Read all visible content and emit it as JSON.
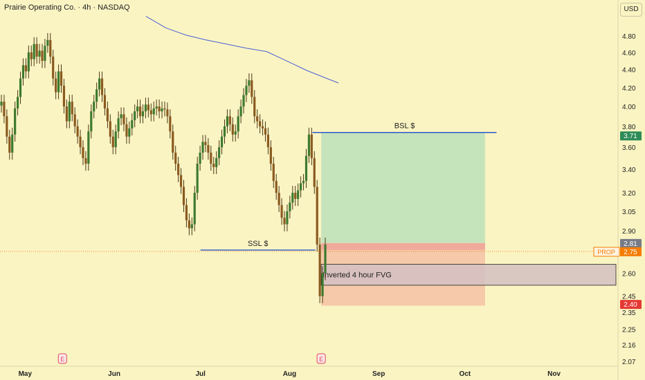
{
  "header": {
    "title": "Prairie Operating Co. · 4h · NASDAQ"
  },
  "currency_button": {
    "label": "USD"
  },
  "colors": {
    "background": "#faf4c3",
    "up_body": "#3d7a2e",
    "down_body": "#8a5a1f",
    "wick": "#4a3515",
    "ma_line": "#4a5fd6",
    "level_line": "#2b58c9",
    "profit_zone": "#c6e4bc",
    "loss_zone": "#f5c9a9",
    "entry_zone": "#f0a99b",
    "fvg_zone": "#d2bfc2",
    "badge_green": "#2e8b57",
    "badge_gray": "#787b86",
    "badge_orange": "#f57c00",
    "badge_red": "#e53935"
  },
  "chart_data": {
    "type": "candlestick",
    "title": "Prairie Operating Co. · 4h · NASDAQ",
    "currency": "USD",
    "y_scale": "log",
    "ylim": [
      2.04,
      5.0
    ],
    "y_ticks": [
      "4.80",
      "4.60",
      "4.40",
      "4.20",
      "4.00",
      "3.80",
      "3.60",
      "3.40",
      "3.20",
      "3.05",
      "2.90",
      "2.75",
      "2.60",
      "2.45",
      "2.35",
      "2.25",
      "2.16",
      "2.07"
    ],
    "x_ticks": [
      "May",
      "Jun",
      "Jul",
      "Aug",
      "Sep",
      "Oct",
      "Nov"
    ],
    "x_range": [
      "2024-04-29",
      "2024-11-30"
    ],
    "candle_closes": [
      4.05,
      3.9,
      3.7,
      3.55,
      3.72,
      3.98,
      4.1,
      4.3,
      4.45,
      4.38,
      4.6,
      4.52,
      4.7,
      4.55,
      4.62,
      4.5,
      4.68,
      4.75,
      4.55,
      4.3,
      4.15,
      4.38,
      4.22,
      4.0,
      3.85,
      4.05,
      3.92,
      3.8,
      3.7,
      3.6,
      3.5,
      3.45,
      3.75,
      3.95,
      4.05,
      4.18,
      4.3,
      4.12,
      3.98,
      3.85,
      3.7,
      3.6,
      3.75,
      3.88,
      3.92,
      3.82,
      3.7,
      3.78,
      3.86,
      3.95,
      4.0,
      3.9,
      3.95,
      4.02,
      3.96,
      3.92,
      3.98,
      4.0,
      3.95,
      3.98,
      3.97,
      3.9,
      3.75,
      3.55,
      3.45,
      3.35,
      3.25,
      3.1,
      2.98,
      2.92,
      2.95,
      3.2,
      3.45,
      3.55,
      3.65,
      3.62,
      3.55,
      3.45,
      3.42,
      3.5,
      3.6,
      3.7,
      3.8,
      3.9,
      3.82,
      3.72,
      3.75,
      3.9,
      4.0,
      4.12,
      4.22,
      4.28,
      4.1,
      3.9,
      3.85,
      3.8,
      3.78,
      3.72,
      3.6,
      3.45,
      3.3,
      3.2,
      3.1,
      3.0,
      2.95,
      3.05,
      3.12,
      3.2,
      3.15,
      3.22,
      3.28,
      3.3,
      3.52,
      3.72,
      3.5,
      3.25,
      2.8,
      2.45,
      2.6,
      2.8
    ],
    "moving_average": [
      {
        "date": "2024-06-12",
        "value": 5.05
      },
      {
        "date": "2024-06-19",
        "value": 4.9
      },
      {
        "date": "2024-06-26",
        "value": 4.81
      },
      {
        "date": "2024-07-03",
        "value": 4.75
      },
      {
        "date": "2024-07-10",
        "value": 4.7
      },
      {
        "date": "2024-07-17",
        "value": 4.65
      },
      {
        "date": "2024-07-24",
        "value": 4.61
      },
      {
        "date": "2024-07-31",
        "value": 4.5
      },
      {
        "date": "2024-08-07",
        "value": 4.39
      },
      {
        "date": "2024-08-14",
        "value": 4.3
      },
      {
        "date": "2024-08-18",
        "value": 4.25
      }
    ],
    "levels": [
      {
        "label": "BSL $",
        "price": 3.74,
        "from": "2024-08-09",
        "to": "2024-10-12"
      },
      {
        "label": "SSL $",
        "price": 2.76,
        "from": "2024-07-01",
        "to": "2024-08-10"
      }
    ],
    "position": {
      "target": 3.74,
      "entry": 2.81,
      "entry_zone_low": 2.76,
      "stop": 2.39,
      "from": "2024-08-12",
      "to": "2024-10-08"
    },
    "zones": [
      {
        "label": "Inverted 4 hour FVG",
        "top": 2.66,
        "bottom": 2.52,
        "from": "2024-08-12",
        "to": "2024-11-30"
      }
    ],
    "earnings_markers": [
      {
        "date": "2024-05-14",
        "label": "E"
      },
      {
        "date": "2024-08-12",
        "label": "E"
      }
    ],
    "price_badges": [
      {
        "label": "",
        "value": "3.71",
        "price": 3.71,
        "kind": "green"
      },
      {
        "label": "",
        "value": "2.81",
        "price": 2.81,
        "kind": "gray"
      },
      {
        "label": "PROP",
        "value": "2.75",
        "price": 2.75,
        "kind": "orange"
      },
      {
        "label": "",
        "value": "2.40",
        "price": 2.4,
        "kind": "red"
      }
    ],
    "grid": false
  }
}
